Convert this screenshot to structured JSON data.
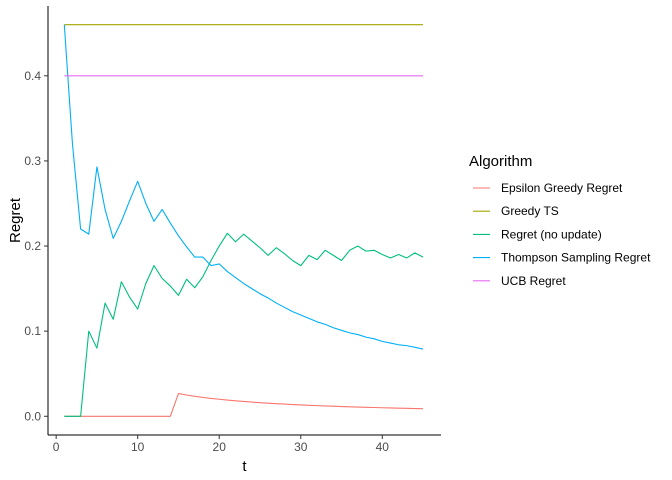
{
  "chart_data": {
    "type": "line",
    "title": "",
    "xlabel": "t",
    "ylabel": "Regret",
    "xlim": [
      -1,
      47.2
    ],
    "ylim": [
      -0.022,
      0.482
    ],
    "xticks": [
      0,
      10,
      20,
      30,
      40
    ],
    "yticks": [
      0.0,
      0.1,
      0.2,
      0.3,
      0.4
    ],
    "ytick_labels": [
      "0.0",
      "0.1",
      "0.2",
      "0.3",
      "0.4"
    ],
    "grid": false,
    "legend": {
      "title": "Algorithm",
      "placement": "right"
    },
    "x": [
      1,
      2,
      3,
      4,
      5,
      6,
      7,
      8,
      9,
      10,
      11,
      12,
      13,
      14,
      15,
      16,
      17,
      18,
      19,
      20,
      21,
      22,
      23,
      24,
      25,
      26,
      27,
      28,
      29,
      30,
      31,
      32,
      33,
      34,
      35,
      36,
      37,
      38,
      39,
      40,
      41,
      42,
      43,
      44,
      45
    ],
    "series": [
      {
        "name": "Epsilon Greedy Regret",
        "color": "#F8766D",
        "values": [
          0,
          0,
          0,
          0,
          0,
          0,
          0,
          0,
          0,
          0,
          0,
          0,
          0,
          0,
          0.0267,
          0.025,
          0.0235,
          0.0222,
          0.021,
          0.02,
          0.019,
          0.0182,
          0.0174,
          0.0167,
          0.016,
          0.0154,
          0.0148,
          0.0143,
          0.0138,
          0.0133,
          0.0129,
          0.0125,
          0.0121,
          0.0118,
          0.0114,
          0.0111,
          0.0108,
          0.0105,
          0.0103,
          0.01,
          0.0098,
          0.0095,
          0.0093,
          0.0091,
          0.0089
        ]
      },
      {
        "name": "Greedy TS",
        "color": "#A3A500",
        "values": [
          0.46,
          0.46,
          0.46,
          0.46,
          0.46,
          0.46,
          0.46,
          0.46,
          0.46,
          0.46,
          0.46,
          0.46,
          0.46,
          0.46,
          0.46,
          0.46,
          0.46,
          0.46,
          0.46,
          0.46,
          0.46,
          0.46,
          0.46,
          0.46,
          0.46,
          0.46,
          0.46,
          0.46,
          0.46,
          0.46,
          0.46,
          0.46,
          0.46,
          0.46,
          0.46,
          0.46,
          0.46,
          0.46,
          0.46,
          0.46,
          0.46,
          0.46,
          0.46,
          0.46,
          0.46
        ]
      },
      {
        "name": "Regret (no update)",
        "color": "#00BF7D",
        "values": [
          0,
          0,
          0,
          0.1,
          0.08,
          0.133,
          0.114,
          0.158,
          0.14,
          0.126,
          0.156,
          0.177,
          0.162,
          0.153,
          0.142,
          0.161,
          0.151,
          0.164,
          0.183,
          0.2,
          0.215,
          0.205,
          0.214,
          0.206,
          0.198,
          0.189,
          0.198,
          0.191,
          0.183,
          0.177,
          0.189,
          0.184,
          0.195,
          0.189,
          0.183,
          0.195,
          0.2,
          0.194,
          0.195,
          0.19,
          0.186,
          0.19,
          0.186,
          0.192,
          0.187
        ]
      },
      {
        "name": "Thompson Sampling Regret",
        "color": "#00B0F6",
        "values": [
          0.46,
          0.32,
          0.22,
          0.214,
          0.293,
          0.243,
          0.209,
          0.229,
          0.253,
          0.276,
          0.25,
          0.229,
          0.243,
          0.227,
          0.212,
          0.199,
          0.187,
          0.187,
          0.177,
          0.179,
          0.17,
          0.163,
          0.156,
          0.15,
          0.144,
          0.139,
          0.133,
          0.128,
          0.123,
          0.119,
          0.115,
          0.111,
          0.108,
          0.104,
          0.101,
          0.098,
          0.096,
          0.093,
          0.091,
          0.088,
          0.086,
          0.084,
          0.083,
          0.081,
          0.079
        ]
      },
      {
        "name": "UCB Regret",
        "color": "#E76BF3",
        "values": [
          0.4,
          0.4,
          0.4,
          0.4,
          0.4,
          0.4,
          0.4,
          0.4,
          0.4,
          0.4,
          0.4,
          0.4,
          0.4,
          0.4,
          0.4,
          0.4,
          0.4,
          0.4,
          0.4,
          0.4,
          0.4,
          0.4,
          0.4,
          0.4,
          0.4,
          0.4,
          0.4,
          0.4,
          0.4,
          0.4,
          0.4,
          0.4,
          0.4,
          0.4,
          0.4,
          0.4,
          0.4,
          0.4,
          0.4,
          0.4,
          0.4,
          0.4,
          0.4,
          0.4,
          0.4
        ]
      }
    ]
  }
}
